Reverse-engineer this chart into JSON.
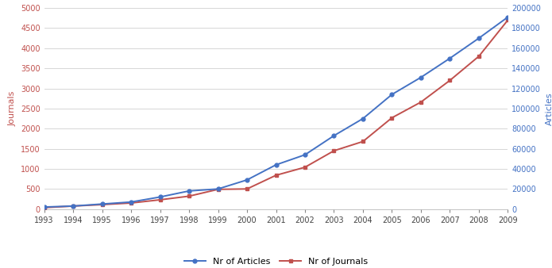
{
  "years": [
    1993,
    1994,
    1995,
    1996,
    1997,
    1998,
    1999,
    2000,
    2001,
    2002,
    2003,
    2004,
    2005,
    2006,
    2007,
    2008,
    2009
  ],
  "journals_left": [
    34,
    74,
    110,
    150,
    230,
    320,
    490,
    500,
    840,
    1040,
    1450,
    1680,
    2270,
    2660,
    3200,
    3800,
    4700
  ],
  "articles_right": [
    2000,
    3000,
    5000,
    7000,
    12000,
    18000,
    20000,
    29000,
    44000,
    54000,
    73000,
    90000,
    114000,
    131000,
    150000,
    170000,
    191000
  ],
  "journal_color": "#C0504D",
  "article_color": "#4472C4",
  "left_ylabel": "Journals",
  "right_ylabel": "Articles",
  "left_ylim": [
    0,
    5000
  ],
  "right_ylim": [
    0,
    200000
  ],
  "left_yticks": [
    0,
    500,
    1000,
    1500,
    2000,
    2500,
    3000,
    3500,
    4000,
    4500,
    5000
  ],
  "right_yticks": [
    0,
    20000,
    40000,
    60000,
    80000,
    100000,
    120000,
    140000,
    160000,
    180000,
    200000
  ],
  "legend_labels": [
    "Nr of Articles",
    "Nr of Journals"
  ],
  "bg_color": "#FFFFFF",
  "grid_color": "#D0D0D0"
}
